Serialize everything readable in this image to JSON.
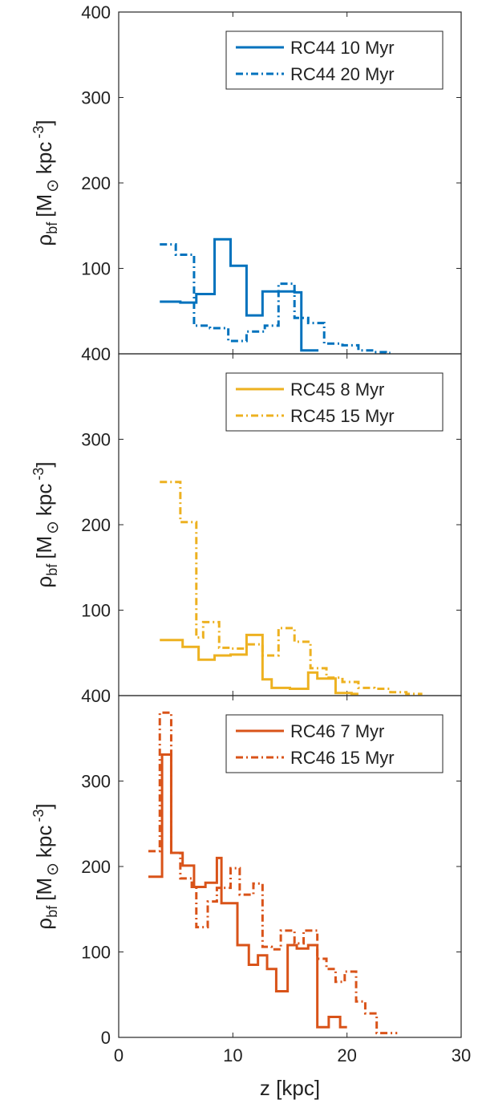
{
  "chart_data": [
    {
      "type": "line",
      "ylabel_main": "ρ",
      "ylabel_sub": "bf",
      "ylabel_units": "[M",
      "ylabel_sun": "⊙",
      "ylabel_kpc": "kpc",
      "ylabel_exp": "-3",
      "ylabel_close": "]",
      "ylim": [
        0,
        400
      ],
      "yticks": [
        "400",
        "300",
        "200",
        "100"
      ],
      "series": [
        {
          "name": "RC44 10 Myr",
          "color": "#0072BD",
          "dash": "solid",
          "x": [
            3.6,
            5.4,
            6.8,
            8.4,
            9.8,
            11.2,
            12.6,
            14.0,
            15.4,
            16.0,
            17.0
          ],
          "y": [
            61,
            60,
            70,
            134,
            103,
            45,
            73,
            73,
            72,
            4,
            4
          ],
          "end": 17.5
        },
        {
          "name": "RC44 20 Myr",
          "color": "#0072BD",
          "dash": "dashdot",
          "x": [
            3.6,
            5.0,
            6.6,
            8.0,
            9.6,
            11.2,
            12.8,
            14.0,
            15.4,
            16.6,
            18.0,
            19.6,
            21.0,
            22.4,
            23.4
          ],
          "y": [
            128,
            116,
            33,
            30,
            15,
            26,
            33,
            82,
            42,
            36,
            12,
            10,
            4,
            2,
            1
          ],
          "end": 23.8
        }
      ]
    },
    {
      "type": "line",
      "ylabel_main": "ρ",
      "ylabel_sub": "bf",
      "ylabel_units": "[M",
      "ylabel_sun": "⊙",
      "ylabel_kpc": "kpc",
      "ylabel_exp": "-3",
      "ylabel_close": "]",
      "ylim": [
        0,
        400
      ],
      "yticks": [
        "400",
        "300",
        "200",
        "100"
      ],
      "series": [
        {
          "name": "RC45 8 Myr",
          "color": "#EDB120",
          "dash": "solid",
          "x": [
            3.6,
            5.6,
            7.0,
            8.4,
            9.8,
            11.2,
            12.6,
            13.4,
            15.0,
            16.6,
            17.4,
            19.0,
            20.4
          ],
          "y": [
            65,
            57,
            42,
            47,
            48,
            71,
            19,
            9,
            8,
            27,
            20,
            3,
            2
          ],
          "end": 21.0
        },
        {
          "name": "RC45 15 Myr",
          "color": "#EDB120",
          "dash": "dashdot",
          "x": [
            3.6,
            5.4,
            6.8,
            7.4,
            8.8,
            9.8,
            11.2,
            12.6,
            14.0,
            15.4,
            16.8,
            18.2,
            19.6,
            21.0,
            22.4,
            23.8,
            25.2
          ],
          "y": [
            250,
            203,
            68,
            86,
            56,
            55,
            60,
            47,
            79,
            63,
            32,
            21,
            16,
            9,
            8,
            4,
            2
          ],
          "end": 26.6
        }
      ]
    },
    {
      "type": "line",
      "ylabel_main": "ρ",
      "ylabel_sub": "bf",
      "ylabel_units": "[M",
      "ylabel_sun": "⊙",
      "ylabel_kpc": "kpc",
      "ylabel_exp": "-3",
      "ylabel_close": "]",
      "xlabel": "z [kpc]",
      "xlim": [
        0,
        30
      ],
      "xticks": [
        "0",
        "10",
        "20",
        "30"
      ],
      "ylim": [
        0,
        400
      ],
      "yticks": [
        "400",
        "300",
        "200",
        "100",
        "0"
      ],
      "series": [
        {
          "name": "RC46 7 Myr",
          "color": "#D95319",
          "dash": "solid",
          "x": [
            2.6,
            3.8,
            4.6,
            5.6,
            6.6,
            7.6,
            8.6,
            9.0,
            10.4,
            11.4,
            12.2,
            13.0,
            13.8,
            14.8,
            15.6,
            16.6,
            17.4,
            18.4,
            19.4
          ],
          "y": [
            188,
            331,
            216,
            201,
            176,
            181,
            210,
            157,
            108,
            85,
            96,
            80,
            54,
            108,
            104,
            108,
            12,
            24,
            12
          ],
          "end": 20.0
        },
        {
          "name": "RC46 15 Myr",
          "color": "#D95319",
          "dash": "dashdot",
          "x": [
            2.6,
            3.6,
            4.6,
            5.4,
            6.4,
            6.8,
            7.8,
            8.6,
            9.8,
            10.6,
            11.8,
            12.6,
            13.4,
            14.2,
            15.4,
            16.2,
            17.4,
            18.2,
            19.0,
            19.8,
            20.8,
            21.6,
            22.6,
            23.6
          ],
          "y": [
            218,
            380,
            216,
            186,
            176,
            129,
            159,
            175,
            198,
            167,
            180,
            106,
            103,
            125,
            110,
            125,
            92,
            80,
            65,
            77,
            42,
            28,
            5,
            5
          ],
          "end": 24.4
        }
      ]
    }
  ]
}
